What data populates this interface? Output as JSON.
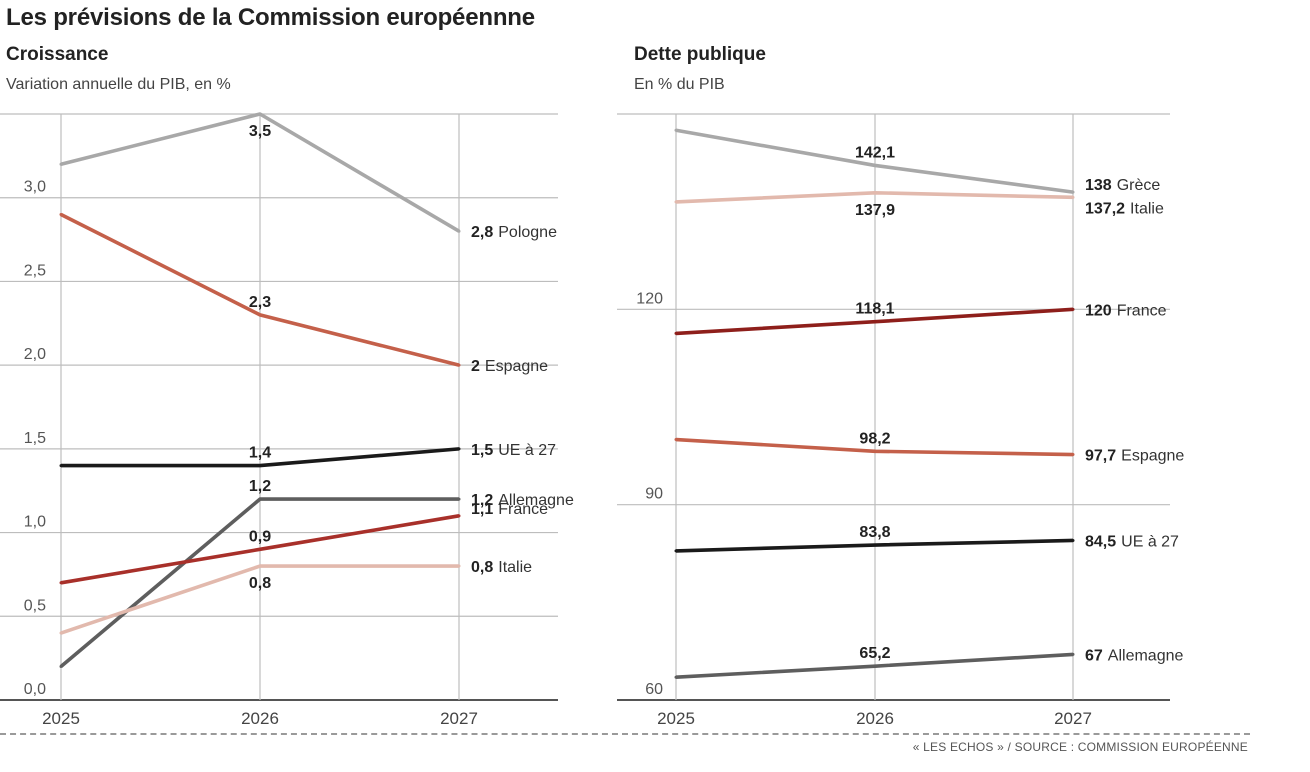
{
  "title": "Les prévisions de la Commission européennne",
  "source": "« LES ECHOS » / SOURCE : COMMISSION EUROPÉENNE",
  "chart_data": [
    {
      "type": "line",
      "title": "Croissance",
      "subtitle": "Variation annuelle du PIB, en %",
      "xlabel": "",
      "ylabel": "",
      "x": [
        "2025",
        "2026",
        "2027"
      ],
      "ylim": [
        0,
        3.5
      ],
      "yticks": [
        0,
        0.5,
        1.0,
        1.5,
        2.0,
        2.5,
        3.0
      ],
      "ytick_labels": [
        "0,0",
        "0,5",
        "1,0",
        "1,5",
        "2,0",
        "2,5",
        "3,0"
      ],
      "grid": true,
      "legend": "end-labels",
      "series": [
        {
          "name": "Pologne",
          "color": "#a8a8a8",
          "values": [
            3.2,
            3.5,
            2.8
          ],
          "mid_label": "3,5",
          "mid_pos": "below",
          "end_value": "2,8"
        },
        {
          "name": "Espagne",
          "color": "#c4604a",
          "values": [
            2.9,
            2.3,
            2.0
          ],
          "mid_label": "2,3",
          "mid_pos": "above",
          "end_value": "2"
        },
        {
          "name": "UE à 27",
          "color": "#1a1a1a",
          "values": [
            1.4,
            1.4,
            1.5
          ],
          "mid_label": "1,4",
          "mid_pos": "above",
          "end_value": "1,5"
        },
        {
          "name": "Allemagne",
          "color": "#5e5e5e",
          "values": [
            0.2,
            1.2,
            1.2
          ],
          "mid_label": "1,2",
          "mid_pos": "above",
          "end_value": "1,2"
        },
        {
          "name": "France",
          "color": "#a8302a",
          "values": [
            0.7,
            0.9,
            1.1
          ],
          "mid_label": "0,9",
          "mid_pos": "above",
          "end_value": "1,1"
        },
        {
          "name": "Italie",
          "color": "#e2b9ad",
          "values": [
            0.4,
            0.8,
            0.8
          ],
          "mid_label": "0,8",
          "mid_pos": "below",
          "end_value": "0,8"
        }
      ]
    },
    {
      "type": "line",
      "title": "Dette publique",
      "subtitle": "En % du PIB",
      "xlabel": "",
      "ylabel": "",
      "x": [
        "2025",
        "2026",
        "2027"
      ],
      "ylim": [
        60,
        150
      ],
      "yticks": [
        60,
        90,
        120
      ],
      "ytick_labels": [
        "60",
        "90",
        "120"
      ],
      "grid": true,
      "legend": "end-labels",
      "series": [
        {
          "name": "Grèce",
          "color": "#a8a8a8",
          "values": [
            147.5,
            142.1,
            138
          ],
          "mid_label": "142,1",
          "mid_pos": "above",
          "end_value": "138"
        },
        {
          "name": "Italie",
          "color": "#e2b9ad",
          "values": [
            136.5,
            137.9,
            137.2
          ],
          "mid_label": "137,9",
          "mid_pos": "below",
          "end_value": "137,2"
        },
        {
          "name": "France",
          "color": "#8e1f1b",
          "values": [
            116.3,
            118.1,
            120
          ],
          "mid_label": "118,1",
          "mid_pos": "above",
          "end_value": "120"
        },
        {
          "name": "Espagne",
          "color": "#c4604a",
          "values": [
            100,
            98.2,
            97.7
          ],
          "mid_label": "98,2",
          "mid_pos": "above",
          "end_value": "97,7"
        },
        {
          "name": "UE à 27",
          "color": "#1a1a1a",
          "values": [
            82.9,
            83.8,
            84.5
          ],
          "mid_label": "83,8",
          "mid_pos": "above",
          "end_value": "84,5"
        },
        {
          "name": "Allemagne",
          "color": "#5e5e5e",
          "values": [
            63.5,
            65.2,
            67
          ],
          "mid_label": "65,2",
          "mid_pos": "above",
          "end_value": "67"
        }
      ]
    }
  ]
}
